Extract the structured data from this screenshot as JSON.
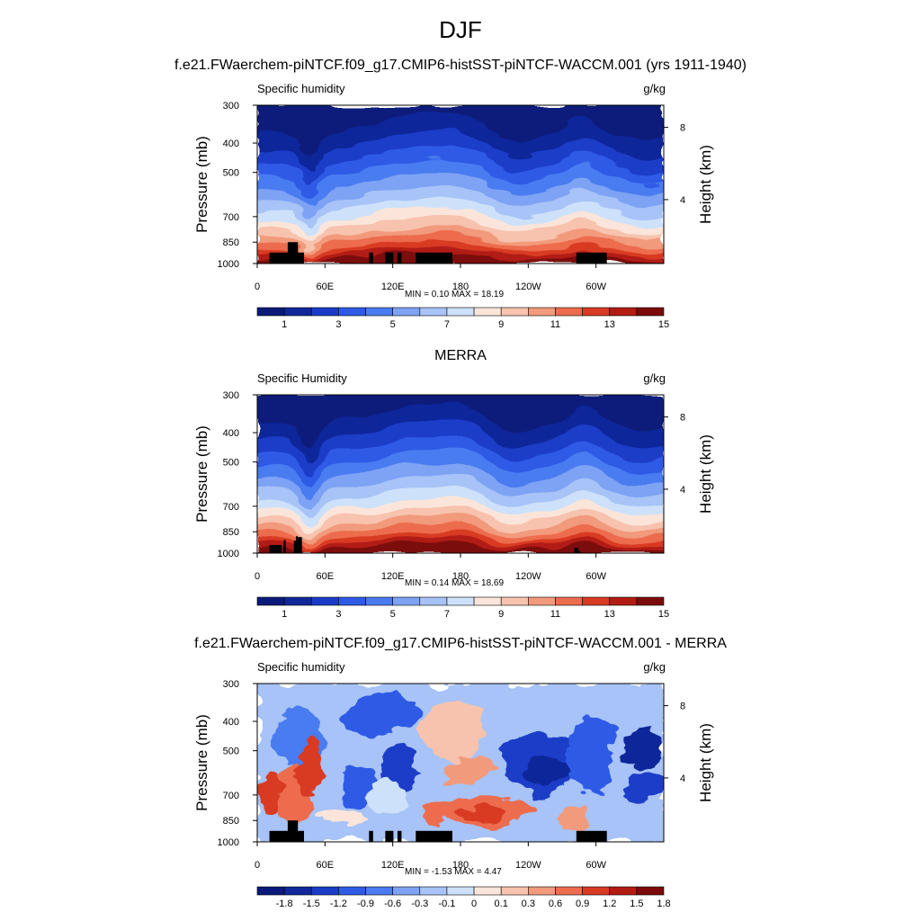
{
  "title": "DJF",
  "colormap_main": [
    "#0a1a7a",
    "#10289a",
    "#1a3cc8",
    "#2e5ae6",
    "#4a7bf0",
    "#7ea2f4",
    "#a7c3f7",
    "#cde1fa",
    "#fbe5da",
    "#f7c3ae",
    "#f29a7c",
    "#ec6c4d",
    "#d83a24",
    "#b21c13",
    "#7c0a0a"
  ],
  "colormap_diff": [
    "#0a1a7a",
    "#10289a",
    "#1a3cc8",
    "#2e5ae6",
    "#4a7bf0",
    "#7ea2f4",
    "#a7c3f7",
    "#cde1fa",
    "#fbe5da",
    "#f7c3ae",
    "#f29a7c",
    "#ec6c4d",
    "#d83a24",
    "#b21c13",
    "#7c0a0a"
  ],
  "panels": [
    {
      "subtitle": "f.e21.FWaerchem-piNTCF.f09_g17.CMIP6-histSST-piNTCF-WACCM.001 (yrs 1911-1940)",
      "left_label": "Specific humidity",
      "right_label": "g/kg",
      "minmax": "MIN =   0.10  MAX =  18.19",
      "ylabel": "Pressure (mb)",
      "y2label": "Height (km)",
      "kind": "main"
    },
    {
      "subtitle": "MERRA",
      "left_label": "Specific Humidity",
      "right_label": "g/kg",
      "minmax": "MIN =   0.14  MAX =  18.69",
      "ylabel": "Pressure (mb)",
      "y2label": "Height (km)",
      "kind": "merra"
    },
    {
      "subtitle": "f.e21.FWaerchem-piNTCF.f09_g17.CMIP6-histSST-piNTCF-WACCM.001 - MERRA",
      "left_label": "Specific humidity",
      "right_label": "g/kg",
      "minmax": "MIN =  -1.53  MAX =   4.47",
      "ylabel": "Pressure (mb)",
      "y2label": "Height (km)",
      "kind": "diff"
    }
  ],
  "chart_data": {
    "type": "heatmap",
    "variable": "Specific humidity",
    "units": "g/kg",
    "season": "DJF",
    "x_ticks": [
      "0",
      "60E",
      "120E",
      "180",
      "120W",
      "60W"
    ],
    "y_ticks": [
      "300",
      "400",
      "500",
      "700",
      "850",
      "1000"
    ],
    "y2_ticks": [
      "8",
      "4"
    ],
    "colorbar_main": [
      "1",
      "3",
      "5",
      "7",
      "9",
      "11",
      "13",
      "15"
    ],
    "colorbar_diff": [
      "-1.8",
      "-1.5",
      "-1.2",
      "-0.9",
      "-0.6",
      "-0.3",
      "-0.1",
      "0",
      "0.1",
      "0.3",
      "0.6",
      "0.9",
      "1.2",
      "1.5",
      "1.8"
    ],
    "stats": [
      {
        "min": 0.1,
        "max": 18.19
      },
      {
        "min": 0.14,
        "max": 18.69
      },
      {
        "min": -1.53,
        "max": 4.47
      }
    ]
  }
}
